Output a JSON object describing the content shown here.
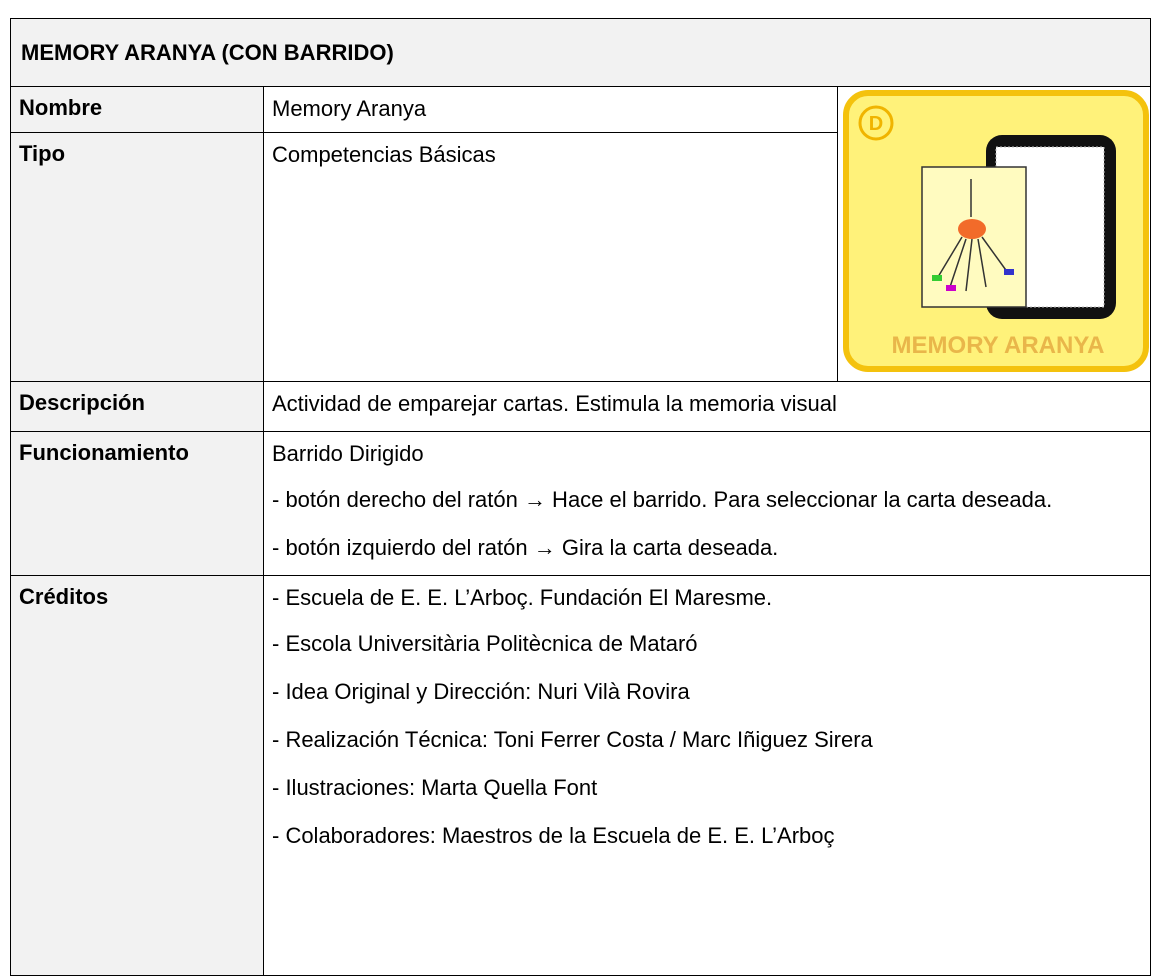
{
  "header": {
    "title": "MEMORY ARANYA (CON BARRIDO)"
  },
  "image": {
    "badge": "D",
    "label": "MEMORY ARANYA"
  },
  "rows": [
    {
      "label": "Nombre",
      "lines": [
        "Memory Aranya"
      ]
    },
    {
      "label": "Tipo",
      "lines": [
        "Competencias Básicas"
      ]
    },
    {
      "label": "Descripción",
      "lines": [
        "Actividad de emparejar cartas. Estimula la memoria visual"
      ]
    },
    {
      "label": "Funcionamiento",
      "lines": [
        "Barrido Dirigido",
        "- botón derecho del ratón → Hace el barrido. Para seleccionar la carta deseada.",
        "- botón izquierdo del ratón → Gira la carta deseada."
      ]
    },
    {
      "label": "Créditos",
      "lines": [
        "- Escuela de E. E. L’Arboç. Fundación El Maresme.",
        "- Escola Universitària Politècnica de Mataró",
        "- Idea Original y Dirección: Nuri Vilà Rovira",
        "- Realización Técnica: Toni Ferrer Costa / Marc Iñiguez Sirera",
        "- Ilustraciones: Marta Quella Font",
        "- Colaboradores: Maestros de la Escuela de E. E. L’Arboç"
      ]
    }
  ]
}
